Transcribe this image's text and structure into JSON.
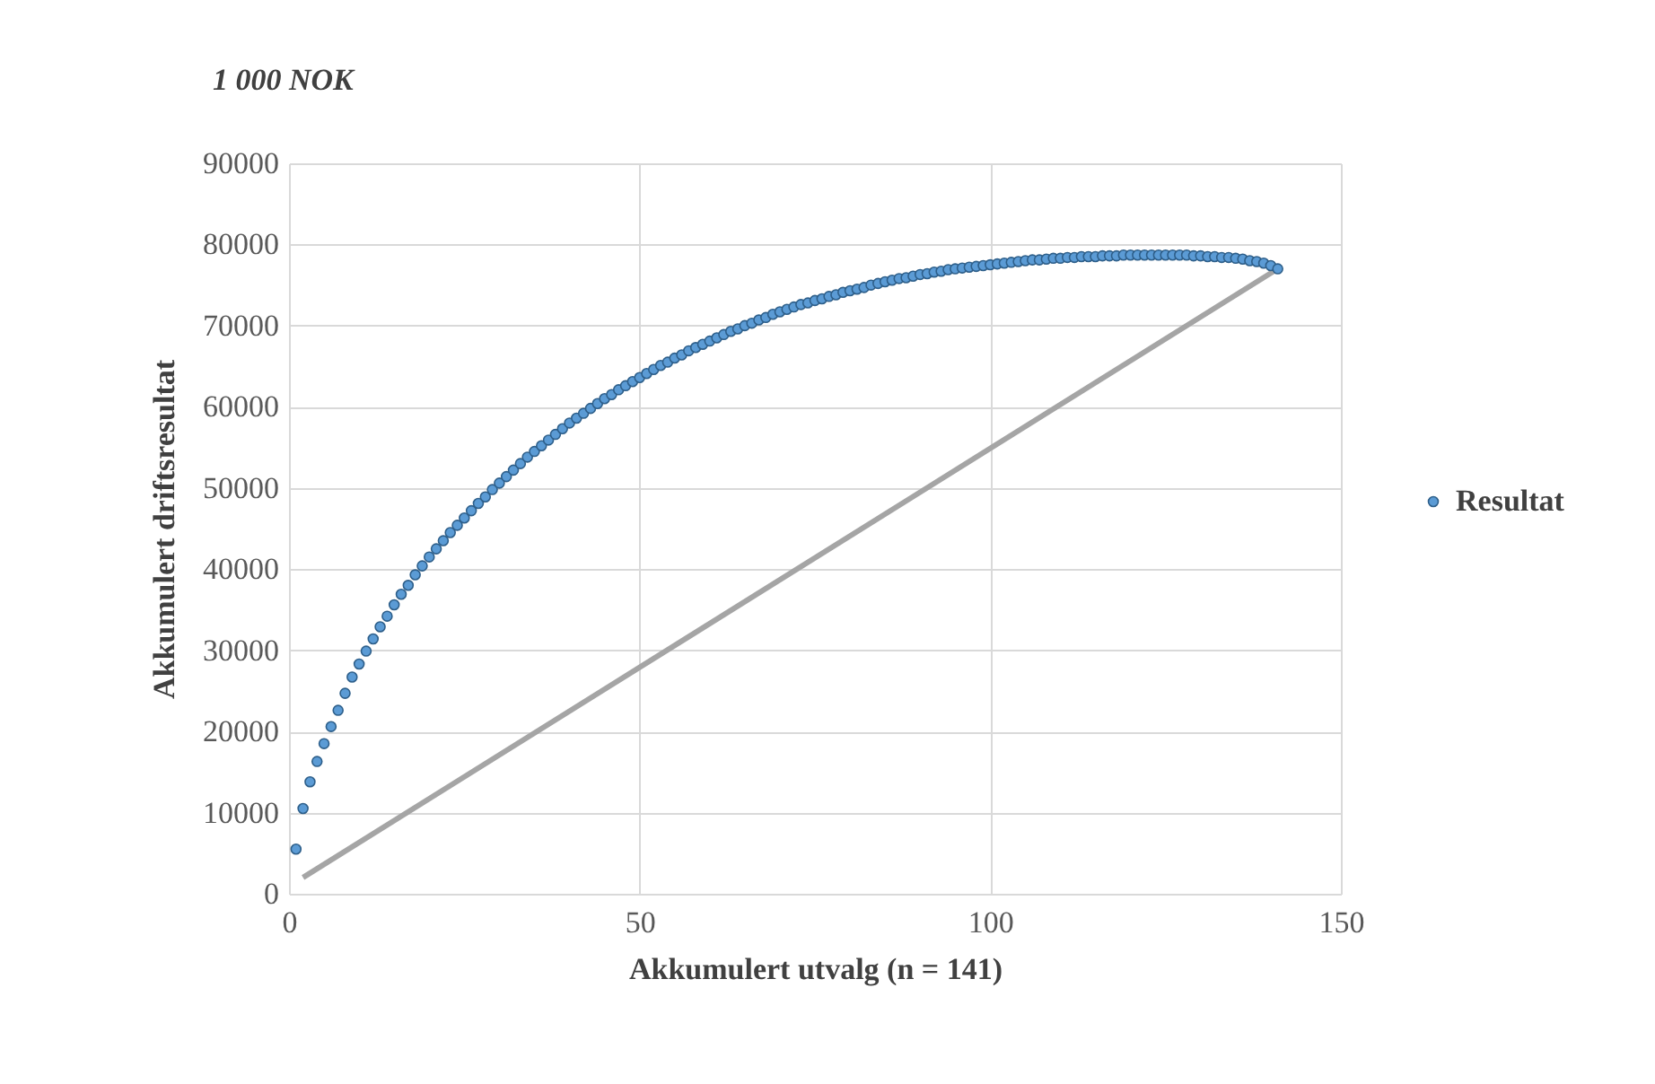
{
  "chart_data": {
    "type": "scatter",
    "title": "1 000 NOK",
    "xlabel": "Akkumulert utvalg (n = 141)",
    "ylabel": "Akkumulert driftsresultat",
    "x": [
      1,
      2,
      3,
      4,
      5,
      6,
      7,
      8,
      9,
      10,
      11,
      12,
      13,
      14,
      15,
      16,
      17,
      18,
      19,
      20,
      21,
      22,
      23,
      24,
      25,
      26,
      27,
      28,
      29,
      30,
      31,
      32,
      33,
      34,
      35,
      36,
      37,
      38,
      39,
      40,
      41,
      42,
      43,
      44,
      45,
      46,
      47,
      48,
      49,
      50,
      51,
      52,
      53,
      54,
      55,
      56,
      57,
      58,
      59,
      60,
      61,
      62,
      63,
      64,
      65,
      66,
      67,
      68,
      69,
      70,
      71,
      72,
      73,
      74,
      75,
      76,
      77,
      78,
      79,
      80,
      81,
      82,
      83,
      84,
      85,
      86,
      87,
      88,
      89,
      90,
      91,
      92,
      93,
      94,
      95,
      96,
      97,
      98,
      99,
      100,
      101,
      102,
      103,
      104,
      105,
      106,
      107,
      108,
      109,
      110,
      111,
      112,
      113,
      114,
      115,
      116,
      117,
      118,
      119,
      120,
      121,
      122,
      123,
      124,
      125,
      126,
      127,
      128,
      129,
      130,
      131,
      132,
      133,
      134,
      135,
      136,
      137,
      138,
      139,
      140,
      141
    ],
    "series": [
      {
        "name": "Resultat",
        "color": "#5b9bd5",
        "marker": "circle",
        "values": [
          5500,
          10500,
          13800,
          16300,
          18500,
          20600,
          22600,
          24700,
          26700,
          28300,
          29900,
          31400,
          32900,
          34200,
          35600,
          36900,
          38000,
          39300,
          40400,
          41500,
          42500,
          43500,
          44500,
          45400,
          46300,
          47200,
          48100,
          48900,
          49800,
          50600,
          51400,
          52200,
          53000,
          53800,
          54500,
          55200,
          55900,
          56600,
          57300,
          58000,
          58600,
          59200,
          59800,
          60400,
          61000,
          61500,
          62100,
          62600,
          63100,
          63600,
          64100,
          64600,
          65100,
          65500,
          66000,
          66400,
          66900,
          67300,
          67700,
          68100,
          68500,
          68900,
          69300,
          69600,
          70000,
          70300,
          70700,
          71000,
          71400,
          71700,
          72000,
          72300,
          72600,
          72800,
          73100,
          73300,
          73600,
          73800,
          74100,
          74300,
          74500,
          74700,
          75000,
          75200,
          75400,
          75600,
          75800,
          75900,
          76100,
          76300,
          76400,
          76600,
          76700,
          76900,
          77000,
          77100,
          77200,
          77300,
          77400,
          77500,
          77600,
          77700,
          77800,
          77900,
          78000,
          78100,
          78100,
          78200,
          78300,
          78300,
          78400,
          78400,
          78500,
          78500,
          78500,
          78600,
          78600,
          78600,
          78700,
          78700,
          78700,
          78700,
          78700,
          78700,
          78700,
          78700,
          78700,
          78700,
          78600,
          78600,
          78500,
          78500,
          78400,
          78400,
          78300,
          78200,
          78000,
          77900,
          77700,
          77400,
          77000
        ]
      },
      {
        "type": "line",
        "color": "#a5a5a5",
        "x": [
          2,
          141
        ],
        "values": [
          2000,
          77000
        ]
      }
    ],
    "xlim": [
      0,
      150
    ],
    "xticks": [
      0,
      50,
      100,
      150
    ],
    "ylim": [
      0,
      90000
    ],
    "yticks": [
      0,
      10000,
      20000,
      30000,
      40000,
      50000,
      60000,
      70000,
      80000,
      90000
    ],
    "grid": true,
    "legend": "right"
  }
}
